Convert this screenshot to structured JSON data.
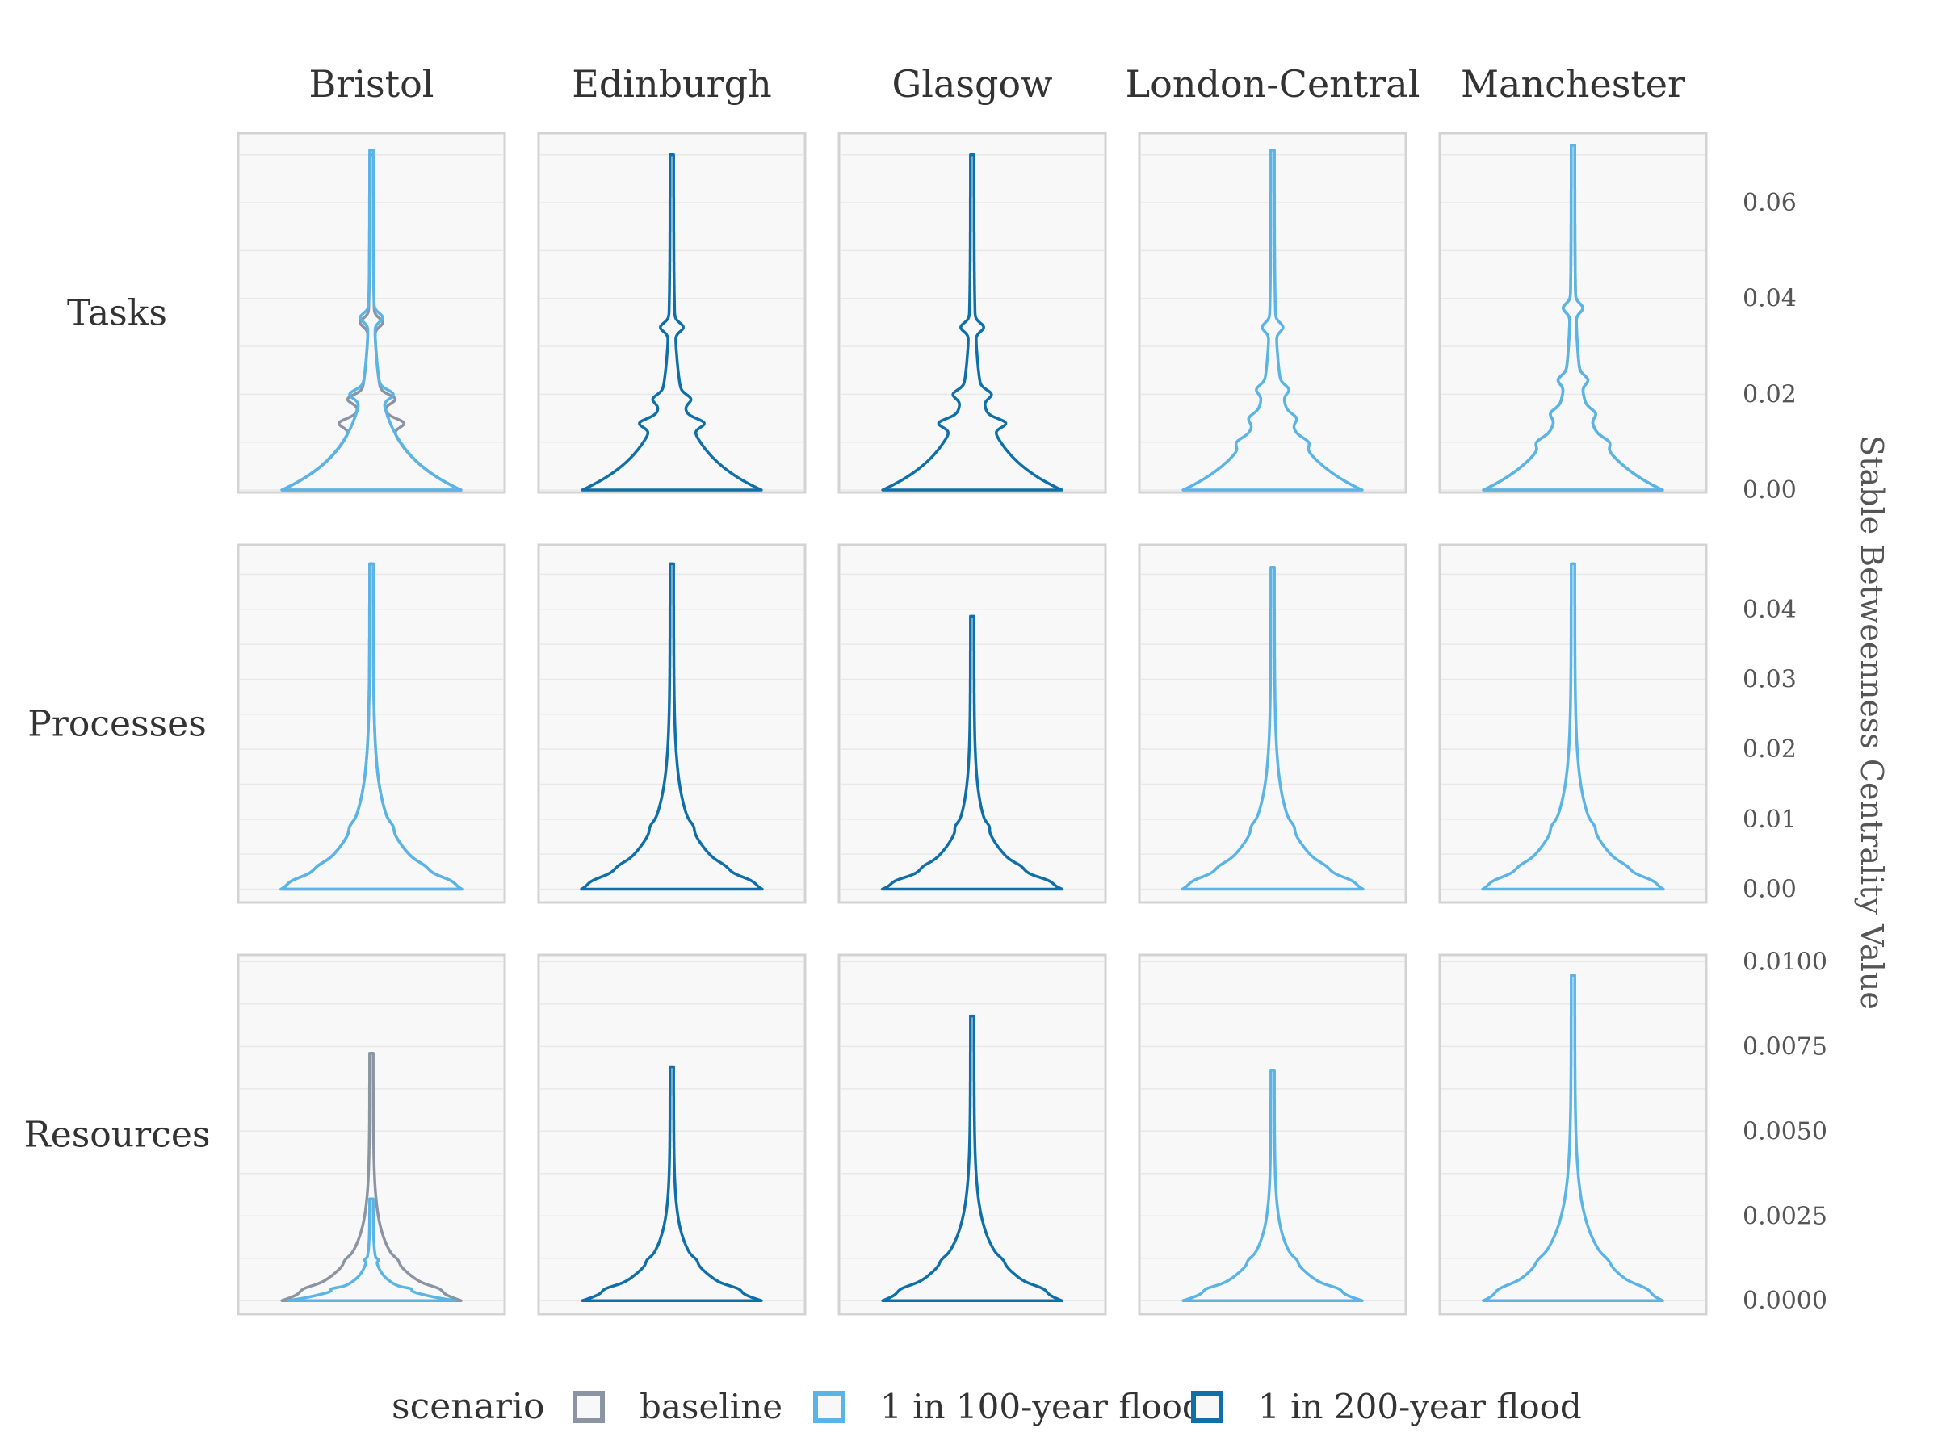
{
  "chart_data": {
    "type": "violin",
    "facet_cols": [
      "Bristol",
      "Edinburgh",
      "Glasgow",
      "London-Central",
      "Manchester"
    ],
    "facet_rows": [
      "Tasks",
      "Processes",
      "Resources"
    ],
    "ylabel": "Stable Betweenness Centrality Value",
    "y_axis_position": "right",
    "grid": true,
    "legend_position": "bottom",
    "legend": {
      "title": "scenario",
      "entries": [
        {
          "name": "baseline",
          "color": "#8a94a3"
        },
        {
          "name": "1 in 100-year flood",
          "color": "#5ab4e5"
        },
        {
          "name": "1 in 200-year flood",
          "color": "#0f6fa8"
        }
      ]
    },
    "rows": [
      {
        "name": "Tasks",
        "ylim": [
          -0.0005,
          0.0745
        ],
        "yticks": [
          0.0,
          0.02,
          0.04,
          0.06
        ],
        "ytick_labels": [
          "0.00",
          "0.02",
          "0.04",
          "0.06"
        ],
        "panels": [
          {
            "city": "Bristol",
            "scenarios": [
              {
                "scenario": "baseline",
                "max": 0.07,
                "w0": 0.75,
                "bulges": [
                  [
                    0.014,
                    0.12
                  ],
                  [
                    0.019,
                    0.11
                  ],
                  [
                    0.035,
                    0.07
                  ]
                ]
              },
              {
                "scenario": "1 in 100-year flood",
                "max": 0.071,
                "w0": 0.75,
                "bulges": [
                  [
                    0.02,
                    0.1
                  ],
                  [
                    0.036,
                    0.07
                  ]
                ]
              }
            ]
          },
          {
            "city": "Edinburgh",
            "scenarios": [
              {
                "scenario": "1 in 200-year flood",
                "max": 0.07,
                "w0": 0.75,
                "bulges": [
                  [
                    0.014,
                    0.12
                  ],
                  [
                    0.019,
                    0.07
                  ],
                  [
                    0.034,
                    0.07
                  ]
                ]
              }
            ]
          },
          {
            "city": "Glasgow",
            "scenarios": [
              {
                "scenario": "1 in 200-year flood",
                "max": 0.07,
                "w0": 0.75,
                "bulges": [
                  [
                    0.014,
                    0.13
                  ],
                  [
                    0.02,
                    0.08
                  ],
                  [
                    0.034,
                    0.07
                  ]
                ]
              }
            ]
          },
          {
            "city": "London-Central",
            "scenarios": [
              {
                "scenario": "1 in 100-year flood",
                "max": 0.071,
                "w0": 0.75,
                "bulges": [
                  [
                    0.01,
                    0.06
                  ],
                  [
                    0.015,
                    0.06
                  ],
                  [
                    0.021,
                    0.06
                  ],
                  [
                    0.034,
                    0.06
                  ]
                ]
              }
            ]
          },
          {
            "city": "Manchester",
            "scenarios": [
              {
                "scenario": "baseline",
                "max": 0.072,
                "w0": 0.75,
                "bulges": [
                  [
                    0.01,
                    0.06
                  ],
                  [
                    0.016,
                    0.06
                  ],
                  [
                    0.023,
                    0.06
                  ],
                  [
                    0.038,
                    0.06
                  ]
                ]
              },
              {
                "scenario": "1 in 100-year flood",
                "max": 0.072,
                "w0": 0.75,
                "bulges": [
                  [
                    0.01,
                    0.06
                  ],
                  [
                    0.016,
                    0.06
                  ],
                  [
                    0.023,
                    0.06
                  ],
                  [
                    0.038,
                    0.06
                  ]
                ]
              }
            ]
          }
        ]
      },
      {
        "name": "Processes",
        "ylim": [
          -0.0019,
          0.0492
        ],
        "yticks": [
          0.0,
          0.01,
          0.02,
          0.03,
          0.04
        ],
        "ytick_labels": [
          "0.00",
          "0.01",
          "0.02",
          "0.03",
          "0.04"
        ],
        "panels": [
          {
            "city": "Bristol",
            "scenarios": [
              {
                "scenario": "baseline",
                "max": 0.0465,
                "w0": 0.75,
                "bulges": [
                  [
                    0.0012,
                    0.06
                  ],
                  [
                    0.0033,
                    0.03
                  ],
                  [
                    0.009,
                    0.02
                  ]
                ]
              },
              {
                "scenario": "1 in 100-year flood",
                "max": 0.0465,
                "w0": 0.75,
                "bulges": [
                  [
                    0.0012,
                    0.06
                  ],
                  [
                    0.0033,
                    0.03
                  ],
                  [
                    0.009,
                    0.02
                  ]
                ]
              }
            ]
          },
          {
            "city": "Edinburgh",
            "scenarios": [
              {
                "scenario": "1 in 200-year flood",
                "max": 0.0465,
                "w0": 0.75,
                "bulges": [
                  [
                    0.0012,
                    0.06
                  ],
                  [
                    0.0033,
                    0.03
                  ],
                  [
                    0.009,
                    0.02
                  ]
                ]
              }
            ]
          },
          {
            "city": "Glasgow",
            "scenarios": [
              {
                "scenario": "1 in 200-year flood",
                "max": 0.039,
                "w0": 0.75,
                "bulges": [
                  [
                    0.0012,
                    0.06
                  ],
                  [
                    0.0033,
                    0.03
                  ],
                  [
                    0.009,
                    0.02
                  ]
                ]
              }
            ]
          },
          {
            "city": "London-Central",
            "scenarios": [
              {
                "scenario": "1 in 100-year flood",
                "max": 0.046,
                "w0": 0.75,
                "bulges": [
                  [
                    0.0012,
                    0.06
                  ],
                  [
                    0.0033,
                    0.03
                  ],
                  [
                    0.009,
                    0.02
                  ]
                ]
              }
            ]
          },
          {
            "city": "Manchester",
            "scenarios": [
              {
                "scenario": "1 in 100-year flood",
                "max": 0.0465,
                "w0": 0.75,
                "bulges": [
                  [
                    0.0012,
                    0.06
                  ],
                  [
                    0.0033,
                    0.03
                  ],
                  [
                    0.009,
                    0.02
                  ]
                ]
              }
            ]
          }
        ]
      },
      {
        "name": "Resources",
        "ylim": [
          -0.0004,
          0.0102
        ],
        "yticks": [
          0.0,
          0.0025,
          0.005,
          0.0075,
          0.01
        ],
        "ytick_labels": [
          "0.0000",
          "0.0025",
          "0.0050",
          "0.0075",
          "0.0100"
        ],
        "panels": [
          {
            "city": "Bristol",
            "scenarios": [
              {
                "scenario": "baseline",
                "max": 0.0073,
                "w0": 0.75,
                "bulges": [
                  [
                    0.00035,
                    0.06
                  ],
                  [
                    0.0012,
                    0.02
                  ]
                ]
              },
              {
                "scenario": "1 in 100-year flood",
                "max": 0.003,
                "w0": 0.7,
                "bulges": [
                  [
                    0.00035,
                    0.06
                  ],
                  [
                    0.0012,
                    0.02
                  ]
                ]
              }
            ]
          },
          {
            "city": "Edinburgh",
            "scenarios": [
              {
                "scenario": "1 in 200-year flood",
                "max": 0.0069,
                "w0": 0.75,
                "bulges": [
                  [
                    0.00035,
                    0.06
                  ],
                  [
                    0.0012,
                    0.02
                  ]
                ]
              }
            ]
          },
          {
            "city": "Glasgow",
            "scenarios": [
              {
                "scenario": "1 in 200-year flood",
                "max": 0.0084,
                "w0": 0.75,
                "bulges": [
                  [
                    0.00035,
                    0.06
                  ],
                  [
                    0.0012,
                    0.02
                  ]
                ]
              }
            ]
          },
          {
            "city": "London-Central",
            "scenarios": [
              {
                "scenario": "1 in 100-year flood",
                "max": 0.0068,
                "w0": 0.75,
                "bulges": [
                  [
                    0.00035,
                    0.06
                  ],
                  [
                    0.0012,
                    0.02
                  ]
                ]
              }
            ]
          },
          {
            "city": "Manchester",
            "scenarios": [
              {
                "scenario": "1 in 100-year flood",
                "max": 0.0096,
                "w0": 0.75,
                "bulges": [
                  [
                    0.00035,
                    0.06
                  ],
                  [
                    0.0012,
                    0.02
                  ]
                ]
              }
            ]
          }
        ]
      }
    ]
  }
}
